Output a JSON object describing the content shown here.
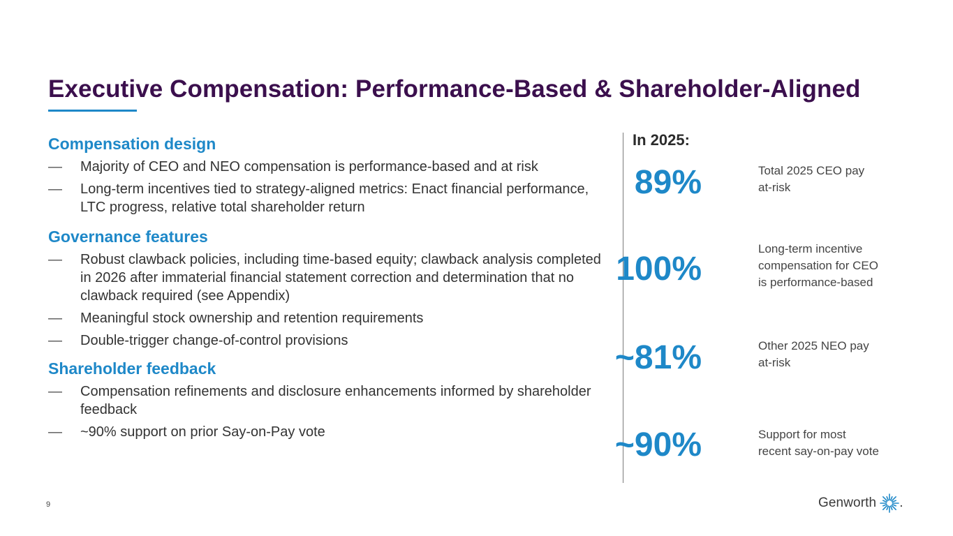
{
  "slide": {
    "title": "Executive Compensation: Performance-Based & Shareholder-Aligned",
    "page_number": "9",
    "colors": {
      "title": "#3b0f4d",
      "accent_blue": "#1e88c8",
      "body_text": "#333333"
    }
  },
  "left": {
    "sections": [
      {
        "heading": "Compensation design",
        "bullets": [
          "Majority of CEO and NEO compensation is performance-based and at risk",
          "Long-term incentives tied to strategy-aligned metrics: Enact financial performance, LTC progress, relative total shareholder return"
        ]
      },
      {
        "heading": "Governance features",
        "bullets": [
          "Robust clawback policies, including time-based equity; clawback analysis completed in 2026 after immaterial financial statement correction and determination that no clawback required (see Appendix)",
          "Meaningful stock ownership and retention requirements",
          "Double-trigger change-of-control provisions"
        ]
      },
      {
        "heading": "Shareholder feedback",
        "bullets": [
          "Compensation refinements and disclosure enhancements informed by shareholder feedback",
          "~90% support on prior Say-on-Pay vote"
        ]
      }
    ],
    "bullet_marker": "—"
  },
  "right": {
    "heading": "In 2025:",
    "stats": [
      {
        "value": "89%",
        "label_lines": [
          "Total 2025 CEO pay",
          "at-risk"
        ]
      },
      {
        "value": "100%",
        "label_lines": [
          "Long-term incentive",
          "compensation for CEO",
          "is performance-based"
        ]
      },
      {
        "value": "~81%",
        "label_lines": [
          "Other 2025 NEO pay",
          "at-risk"
        ]
      },
      {
        "value": "~90%",
        "label_lines": [
          "Support for most",
          "recent say-on-pay vote"
        ]
      }
    ]
  },
  "footer": {
    "logo_text": "Genworth",
    "logo_icon": "starburst-logo-icon",
    "logo_dot": "."
  }
}
